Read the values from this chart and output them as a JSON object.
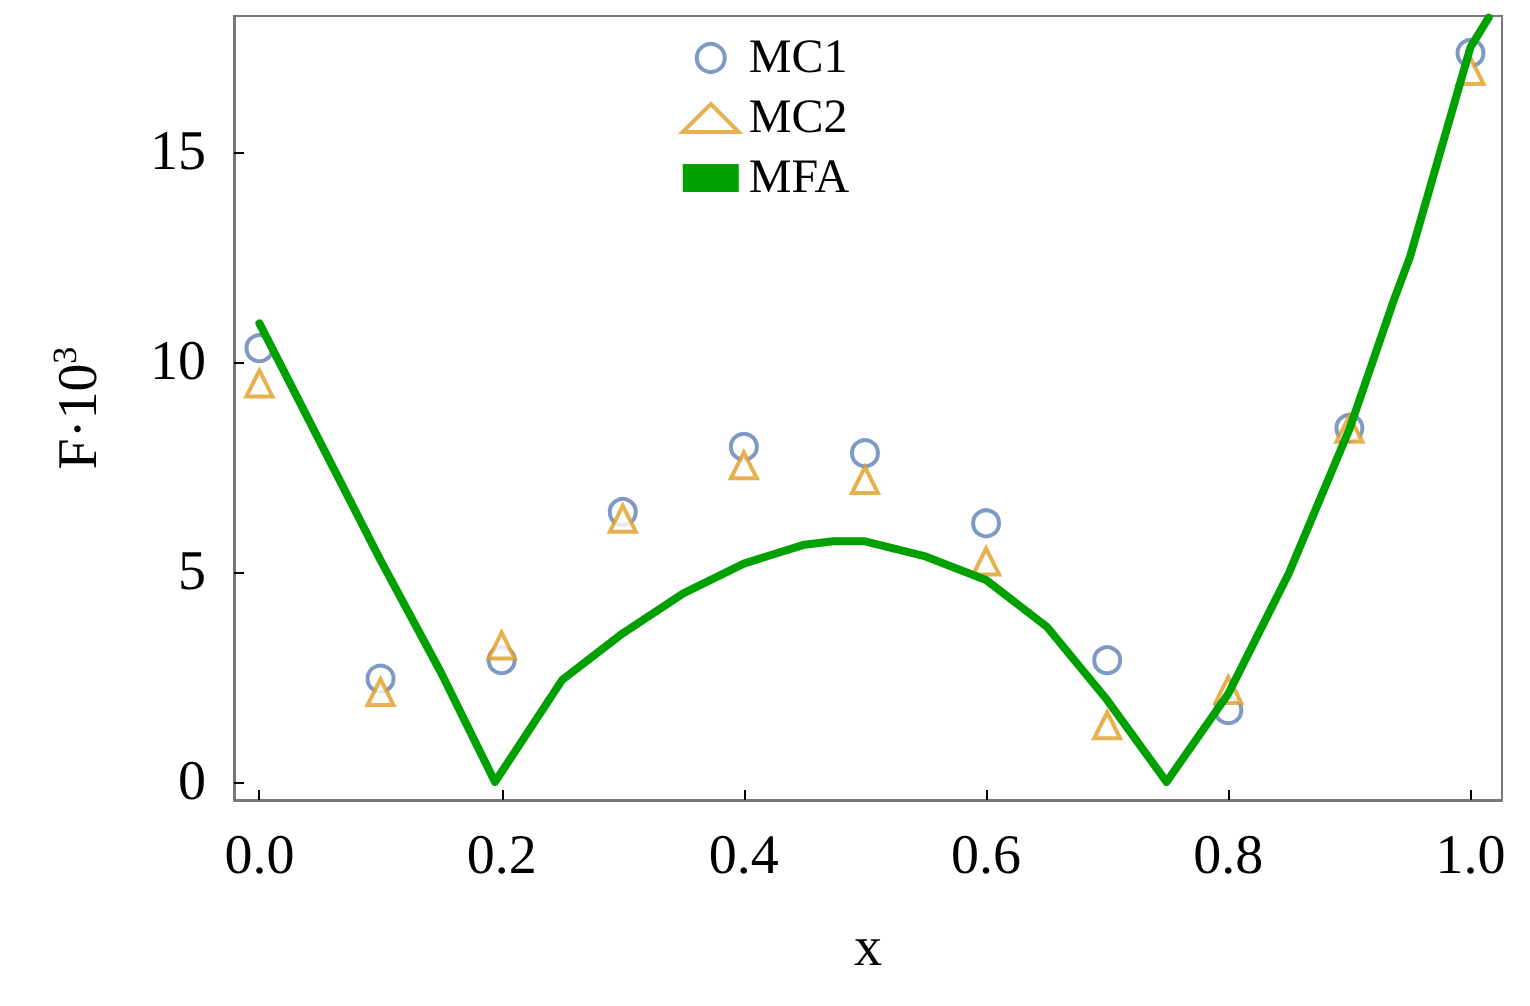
{
  "chart_data": {
    "type": "scatter",
    "xlabel": "x",
    "ylabel": "F·10$^{3}$",
    "xlim": [
      -0.021,
      1.026
    ],
    "ylim": [
      -0.43,
      18.24
    ],
    "xticks": [
      {
        "value": 0,
        "label": "0.0"
      },
      {
        "value": 0.2,
        "label": "0.2"
      },
      {
        "value": 0.4,
        "label": "0.4"
      },
      {
        "value": 0.6,
        "label": "0.6"
      },
      {
        "value": 0.8,
        "label": "0.8"
      },
      {
        "value": 1,
        "label": "1.0"
      }
    ],
    "yticks": [
      0,
      5,
      10,
      15
    ],
    "grid": false,
    "legend": "top",
    "series": [
      {
        "name": "MC1",
        "marker": "circle",
        "color": "#5e81b5",
        "x": [
          0,
          0.1,
          0.2,
          0.3,
          0.4,
          0.5,
          0.6,
          0.7,
          0.8,
          0.9,
          1.0
        ],
        "values": [
          10.33,
          2.46,
          2.9,
          6.43,
          7.98,
          7.83,
          6.16,
          2.9,
          1.71,
          8.43,
          17.36
        ]
      },
      {
        "name": "MC2",
        "marker": "triangle",
        "color": "#e19c24",
        "x": [
          0,
          0.1,
          0.2,
          0.3,
          0.4,
          0.5,
          0.6,
          0.7,
          0.8,
          0.9,
          1.0
        ],
        "values": [
          9.49,
          2.14,
          3.25,
          6.27,
          7.54,
          7.19,
          5.25,
          1.35,
          2.19,
          8.41,
          16.93
        ]
      },
      {
        "name": "MFA",
        "type": "line",
        "marker": "none",
        "line_style": "solid",
        "color": "#00a000",
        "x": [
          0,
          0.05,
          0.1,
          0.15,
          0.1945,
          0.25,
          0.3,
          0.35,
          0.4,
          0.45,
          0.474,
          0.5,
          0.55,
          0.6,
          0.65,
          0.7,
          0.749,
          0.8,
          0.85,
          0.9,
          0.937,
          0.95,
          1.0,
          1.015
        ],
        "values": [
          10.92,
          8.1,
          5.28,
          2.6,
          0,
          2.43,
          3.54,
          4.49,
          5.2,
          5.65,
          5.73,
          5.73,
          5.37,
          4.81,
          3.7,
          1.95,
          0,
          2.1,
          4.97,
          8.4,
          11.5,
          12.5,
          17.5,
          18.2
        ]
      }
    ]
  }
}
